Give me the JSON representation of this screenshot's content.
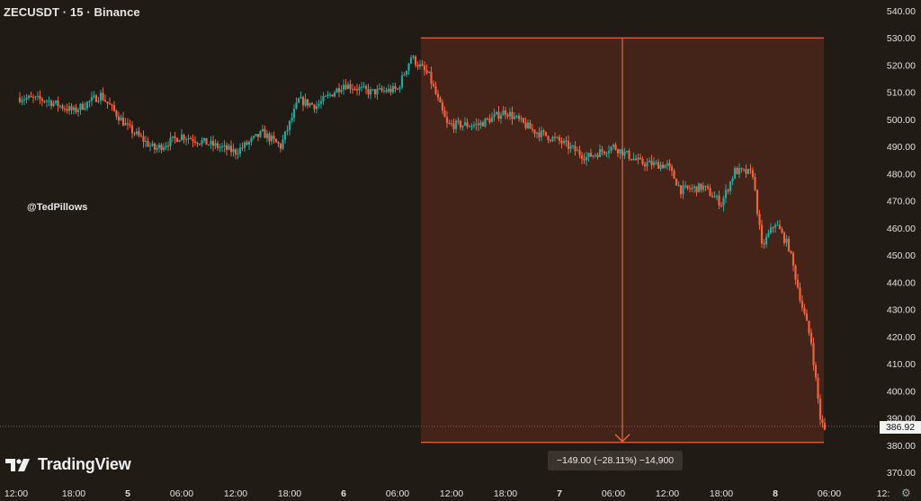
{
  "header": {
    "title": "ZECUSDT · 15 · Binance"
  },
  "watermark": {
    "handle": "@TedPillows"
  },
  "brand": {
    "name": "TradingView",
    "logo_icon": "tradingview-logo-icon"
  },
  "colors": {
    "background": "#211b15",
    "up": "#26a69a",
    "down": "#f0623d",
    "measure_fill": "#4a2519",
    "measure_line": "#f0623d"
  },
  "chart_data": {
    "type": "candlestick",
    "title": "ZECUSDT · 15 · Binance",
    "ylim": [
      370,
      540
    ],
    "y_ticks": [
      540,
      530,
      520,
      510,
      500,
      490,
      480,
      470,
      460,
      450,
      440,
      430,
      420,
      410,
      400,
      390,
      380,
      370
    ],
    "y_tick_labels": [
      "540.00",
      "530.00",
      "520.00",
      "510.00",
      "500.00",
      "490.00",
      "480.00",
      "470.00",
      "460.00",
      "450.00",
      "440.00",
      "430.00",
      "420.00",
      "410.00",
      "400.00",
      "390.00",
      "380.00",
      "370.00"
    ],
    "x_ticks": [
      {
        "t": 0,
        "label": "12:00"
      },
      {
        "t": 6,
        "label": "18:00"
      },
      {
        "t": 12,
        "label": "5"
      },
      {
        "t": 18,
        "label": "06:00"
      },
      {
        "t": 24,
        "label": "12:00"
      },
      {
        "t": 30,
        "label": "18:00"
      },
      {
        "t": 36,
        "label": "6"
      },
      {
        "t": 42,
        "label": "06:00"
      },
      {
        "t": 48,
        "label": "12:00"
      },
      {
        "t": 54,
        "label": "18:00"
      },
      {
        "t": 60,
        "label": "7"
      },
      {
        "t": 66,
        "label": "06:00"
      },
      {
        "t": 72,
        "label": "12:00"
      },
      {
        "t": 78,
        "label": "18:00"
      },
      {
        "t": 84,
        "label": "8"
      },
      {
        "t": 90,
        "label": "06:00"
      },
      {
        "t": 96,
        "label": "12:"
      }
    ],
    "t_range": [
      0,
      95
    ],
    "candles_per_hour": 4,
    "price_path": [
      [
        0,
        508
      ],
      [
        3,
        507
      ],
      [
        6,
        503
      ],
      [
        9,
        509
      ],
      [
        12,
        497
      ],
      [
        15,
        489
      ],
      [
        18,
        494
      ],
      [
        21,
        491
      ],
      [
        24,
        488
      ],
      [
        27,
        495
      ],
      [
        29,
        490
      ],
      [
        31,
        507
      ],
      [
        33,
        505
      ],
      [
        36,
        513
      ],
      [
        39,
        510
      ],
      [
        42,
        511
      ],
      [
        43.5,
        523
      ],
      [
        45.5,
        516
      ],
      [
        47.5,
        498
      ],
      [
        51,
        498
      ],
      [
        54,
        503
      ],
      [
        57,
        496
      ],
      [
        60,
        492
      ],
      [
        63,
        486
      ],
      [
        66,
        490
      ],
      [
        69,
        484
      ],
      [
        72,
        483
      ],
      [
        73.5,
        474
      ],
      [
        76,
        475
      ],
      [
        78,
        469
      ],
      [
        79.5,
        481
      ],
      [
        81.5,
        480
      ],
      [
        82.5,
        453
      ],
      [
        84,
        462
      ],
      [
        85.5,
        453
      ],
      [
        87,
        431
      ],
      [
        88,
        418
      ],
      [
        89,
        390
      ],
      [
        89.5,
        385
      ]
    ],
    "last_price": "386.92",
    "last_price_value": 386.92,
    "measure": {
      "t_start": 44.6,
      "t_end": 89.4,
      "price_high": 530,
      "price_low": 381,
      "label": "−149.00 (−28.11%) −14,900"
    },
    "grid": false,
    "legend": "none"
  },
  "settings": {
    "icon": "settings-gear-icon"
  }
}
